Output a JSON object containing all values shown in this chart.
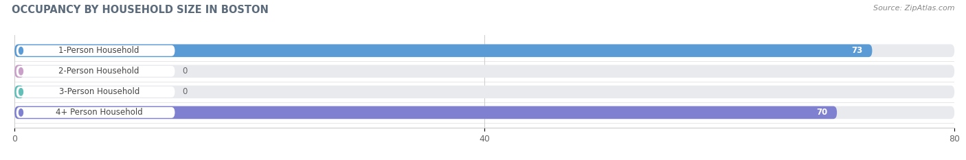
{
  "title": "OCCUPANCY BY HOUSEHOLD SIZE IN BOSTON",
  "source": "Source: ZipAtlas.com",
  "categories": [
    "1-Person Household",
    "2-Person Household",
    "3-Person Household",
    "4+ Person Household"
  ],
  "values": [
    73,
    0,
    0,
    70
  ],
  "bar_colors": [
    "#5b9bd5",
    "#c9a0c8",
    "#63bfb8",
    "#8080d0"
  ],
  "xlim": [
    0,
    80
  ],
  "xticks": [
    0,
    40,
    80
  ],
  "bar_height": 0.62,
  "background_color": "#ffffff",
  "bar_bg_color": "#e8eaee",
  "title_color": "#5a6a7a",
  "source_color": "#888888"
}
